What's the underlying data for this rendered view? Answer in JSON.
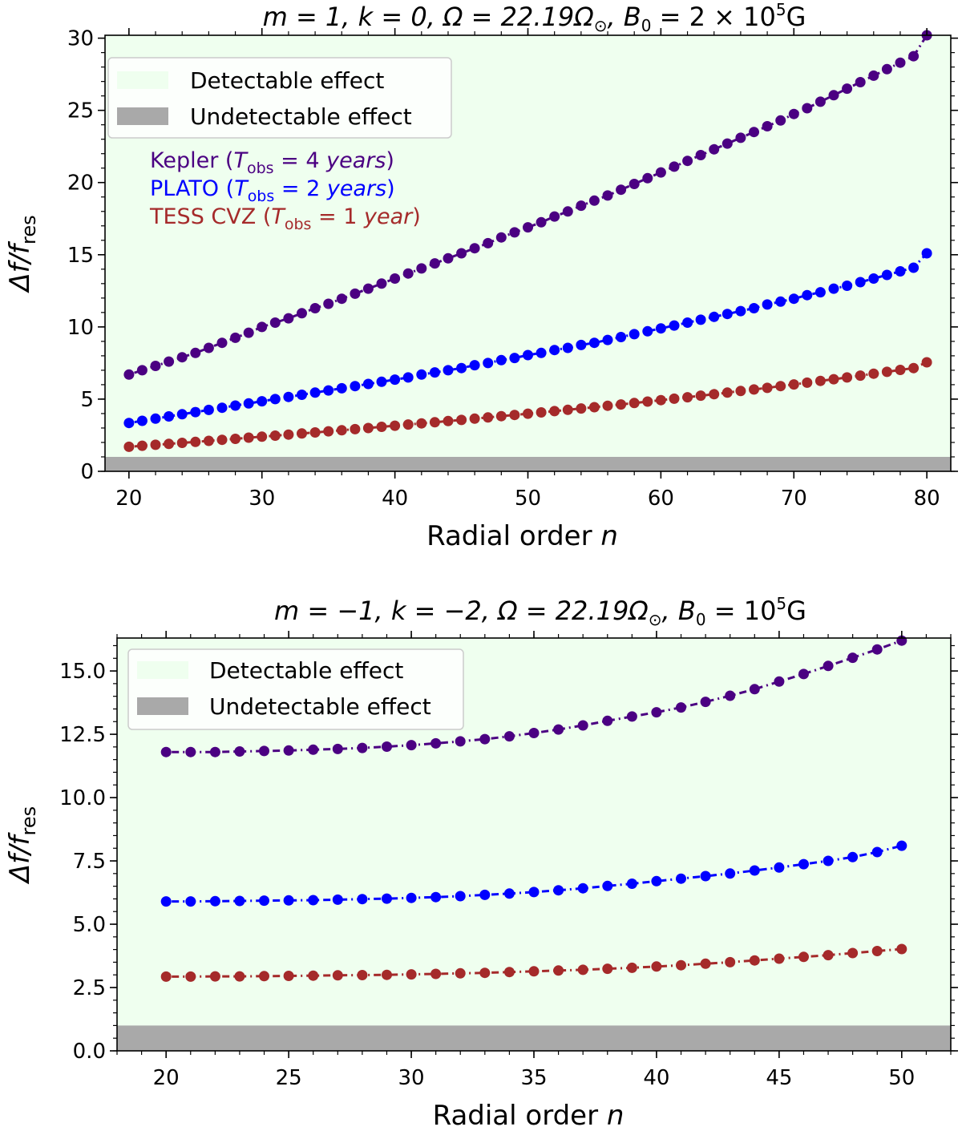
{
  "chart_data": [
    {
      "type": "line",
      "title_parts": [
        "m = 1,  k = 0,  Ω = 22.19Ω",
        "⊙",
        ",  B",
        "0",
        " = 2 × 10",
        "5",
        "G"
      ],
      "xlabel": "Radial order ",
      "xlabel_var": "n",
      "ylabel_parts": [
        "Δf/f",
        "res"
      ],
      "xlim": [
        18.2,
        81.8
      ],
      "ylim": [
        0,
        30.2
      ],
      "xticks": [
        20,
        30,
        40,
        50,
        60,
        70,
        80
      ],
      "yticks": [
        0,
        5,
        10,
        15,
        20,
        25,
        30
      ],
      "xtick_labels": [
        "20",
        "30",
        "40",
        "50",
        "60",
        "70",
        "80"
      ],
      "ytick_labels": [
        "0",
        "5",
        "10",
        "15",
        "20",
        "25",
        "30"
      ],
      "x_minor_step": 2,
      "y_minor_step": 1,
      "undetectable_below": 1,
      "legend": [
        "Detectable effect",
        "Undetectable effect"
      ],
      "annotations": [
        {
          "color": "#4B0082",
          "parts": [
            "Kepler (",
            "T",
            "obs",
            " = 4 ",
            "years",
            ")"
          ]
        },
        {
          "color": "#0000FF",
          "parts": [
            "PLATO (",
            "T",
            "obs",
            " = 2 ",
            "years",
            ")"
          ]
        },
        {
          "color": "#A52A2A",
          "parts": [
            "TESS CVZ (",
            "T",
            "obs",
            " = 1 ",
            "year",
            ")"
          ]
        }
      ],
      "series": [
        {
          "name": "Kepler",
          "color": "#4B0082",
          "x_start": 20,
          "x_end": 80,
          "values": [
            6.7,
            7.0,
            7.3,
            7.6,
            7.9,
            8.2,
            8.55,
            8.9,
            9.25,
            9.6,
            10.0,
            10.3,
            10.6,
            10.95,
            11.3,
            11.6,
            11.95,
            12.3,
            12.65,
            13.0,
            13.35,
            13.7,
            14.05,
            14.4,
            14.75,
            15.1,
            15.45,
            15.8,
            16.2,
            16.55,
            16.9,
            17.25,
            17.65,
            18.0,
            18.4,
            18.75,
            19.1,
            19.5,
            19.9,
            20.3,
            20.7,
            21.1,
            21.5,
            21.9,
            22.3,
            22.7,
            23.1,
            23.5,
            23.9,
            24.3,
            24.75,
            25.15,
            25.6,
            26.05,
            26.5,
            26.95,
            27.4,
            27.85,
            28.3,
            28.75,
            30.2
          ]
        },
        {
          "name": "PLATO",
          "color": "#0000FF",
          "x_start": 20,
          "x_end": 80,
          "values": [
            3.35,
            3.5,
            3.65,
            3.8,
            3.95,
            4.1,
            4.25,
            4.4,
            4.55,
            4.7,
            4.85,
            5.0,
            5.15,
            5.3,
            5.45,
            5.6,
            5.75,
            5.9,
            6.05,
            6.2,
            6.35,
            6.5,
            6.7,
            6.85,
            7.0,
            7.15,
            7.35,
            7.5,
            7.7,
            7.85,
            8.05,
            8.2,
            8.4,
            8.55,
            8.75,
            8.9,
            9.1,
            9.3,
            9.5,
            9.7,
            9.9,
            10.1,
            10.3,
            10.5,
            10.7,
            10.9,
            11.1,
            11.3,
            11.55,
            11.75,
            11.95,
            12.2,
            12.4,
            12.65,
            12.85,
            13.1,
            13.35,
            13.6,
            13.85,
            14.1,
            15.1
          ]
        },
        {
          "name": "TESS CVZ",
          "color": "#A52A2A",
          "x_start": 20,
          "x_end": 80,
          "values": [
            1.7,
            1.77,
            1.84,
            1.9,
            1.97,
            2.04,
            2.11,
            2.18,
            2.25,
            2.33,
            2.4,
            2.47,
            2.54,
            2.62,
            2.69,
            2.77,
            2.84,
            2.92,
            3.0,
            3.08,
            3.16,
            3.24,
            3.32,
            3.4,
            3.48,
            3.56,
            3.65,
            3.73,
            3.82,
            3.9,
            3.99,
            4.08,
            4.17,
            4.26,
            4.35,
            4.44,
            4.54,
            4.63,
            4.73,
            4.83,
            4.93,
            5.03,
            5.13,
            5.24,
            5.34,
            5.45,
            5.56,
            5.67,
            5.78,
            5.9,
            6.02,
            6.14,
            6.26,
            6.38,
            6.5,
            6.63,
            6.76,
            6.89,
            7.02,
            7.15,
            7.55
          ]
        }
      ]
    },
    {
      "type": "line",
      "title_parts": [
        "m = −1,  k = −2,  Ω = 22.19Ω",
        "⊙",
        ",  B",
        "0",
        " = 10",
        "5",
        "G"
      ],
      "xlabel": "Radial order ",
      "xlabel_var": "n",
      "ylabel_parts": [
        "Δf/f",
        "res"
      ],
      "xlim": [
        18.0,
        52.0
      ],
      "ylim": [
        0,
        16.3
      ],
      "xticks": [
        20,
        25,
        30,
        35,
        40,
        45,
        50
      ],
      "yticks": [
        0,
        2.5,
        5,
        7.5,
        10,
        12.5,
        15
      ],
      "xtick_labels": [
        "20",
        "25",
        "30",
        "35",
        "40",
        "45",
        "50"
      ],
      "ytick_labels": [
        "0.0",
        "2.5",
        "5.0",
        "7.5",
        "10.0",
        "12.5",
        "15.0"
      ],
      "x_minor_step": 1,
      "y_minor_step": 0.5,
      "undetectable_below": 1,
      "legend": [
        "Detectable effect",
        "Undetectable effect"
      ],
      "annotations": [],
      "series": [
        {
          "name": "Kepler",
          "color": "#4B0082",
          "x_start": 20,
          "x_end": 50,
          "values": [
            11.8,
            11.8,
            11.8,
            11.82,
            11.84,
            11.86,
            11.89,
            11.92,
            11.96,
            12.01,
            12.07,
            12.14,
            12.22,
            12.31,
            12.42,
            12.55,
            12.69,
            12.85,
            13.03,
            13.2,
            13.37,
            13.56,
            13.78,
            14.02,
            14.28,
            14.58,
            14.88,
            15.2,
            15.52,
            15.85,
            16.2
          ]
        },
        {
          "name": "PLATO",
          "color": "#0000FF",
          "x_start": 20,
          "x_end": 50,
          "values": [
            5.9,
            5.9,
            5.91,
            5.92,
            5.93,
            5.94,
            5.95,
            5.97,
            5.99,
            6.01,
            6.04,
            6.07,
            6.11,
            6.16,
            6.21,
            6.27,
            6.34,
            6.42,
            6.51,
            6.6,
            6.7,
            6.8,
            6.9,
            7.0,
            7.12,
            7.24,
            7.37,
            7.5,
            7.65,
            7.85,
            8.1
          ]
        },
        {
          "name": "TESS CVZ",
          "color": "#A52A2A",
          "x_start": 20,
          "x_end": 50,
          "values": [
            2.93,
            2.93,
            2.94,
            2.94,
            2.95,
            2.96,
            2.97,
            2.98,
            2.99,
            3.0,
            3.02,
            3.04,
            3.06,
            3.08,
            3.11,
            3.14,
            3.17,
            3.2,
            3.24,
            3.28,
            3.33,
            3.38,
            3.44,
            3.5,
            3.57,
            3.64,
            3.71,
            3.78,
            3.86,
            3.94,
            4.02
          ]
        }
      ]
    }
  ]
}
